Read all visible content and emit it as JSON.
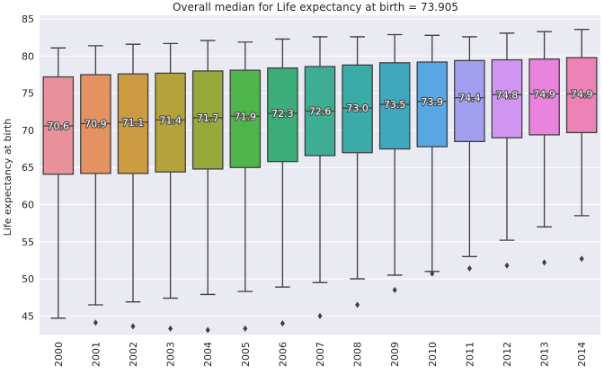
{
  "chart_data": {
    "type": "box",
    "title": "Overall median for Life expectancy at birth = 73.905",
    "xlabel": "",
    "ylabel": "Life expectancy at birth",
    "ylim": [
      42.5,
      85.5
    ],
    "yticks": [
      45,
      50,
      55,
      60,
      65,
      70,
      75,
      80,
      85
    ],
    "grid": true,
    "categories": [
      "2000",
      "2001",
      "2002",
      "2003",
      "2004",
      "2005",
      "2006",
      "2007",
      "2008",
      "2009",
      "2010",
      "2011",
      "2012",
      "2013",
      "2014"
    ],
    "median_labels": [
      "70.6",
      "70.9",
      "71.1",
      "71.4",
      "71.7",
      "71.9",
      "72.3",
      "72.6",
      "73.0",
      "73.5",
      "73.9",
      "74.4",
      "74.8",
      "74.9",
      "74.9"
    ],
    "boxes": [
      {
        "whislo": 44.7,
        "q1": 64.1,
        "med": 70.6,
        "q3": 77.2,
        "whishi": 81.1,
        "fliers": []
      },
      {
        "whislo": 46.5,
        "q1": 64.2,
        "med": 70.9,
        "q3": 77.5,
        "whishi": 81.4,
        "fliers": [
          44.1
        ]
      },
      {
        "whislo": 46.9,
        "q1": 64.2,
        "med": 71.1,
        "q3": 77.6,
        "whishi": 81.6,
        "fliers": [
          43.6
        ]
      },
      {
        "whislo": 47.4,
        "q1": 64.4,
        "med": 71.4,
        "q3": 77.7,
        "whishi": 81.7,
        "fliers": [
          43.3
        ]
      },
      {
        "whislo": 47.9,
        "q1": 64.8,
        "med": 71.7,
        "q3": 78.0,
        "whishi": 82.1,
        "fliers": [
          43.1
        ]
      },
      {
        "whislo": 48.3,
        "q1": 65.0,
        "med": 71.9,
        "q3": 78.1,
        "whishi": 81.9,
        "fliers": [
          43.3
        ]
      },
      {
        "whislo": 48.9,
        "q1": 65.8,
        "med": 72.3,
        "q3": 78.4,
        "whishi": 82.3,
        "fliers": [
          44.0
        ]
      },
      {
        "whislo": 49.5,
        "q1": 66.6,
        "med": 72.6,
        "q3": 78.6,
        "whishi": 82.6,
        "fliers": [
          45.0
        ]
      },
      {
        "whislo": 50.0,
        "q1": 67.0,
        "med": 73.0,
        "q3": 78.8,
        "whishi": 82.6,
        "fliers": [
          46.5
        ]
      },
      {
        "whislo": 50.5,
        "q1": 67.5,
        "med": 73.5,
        "q3": 79.1,
        "whishi": 82.9,
        "fliers": [
          48.5
        ]
      },
      {
        "whislo": 51.0,
        "q1": 67.8,
        "med": 73.9,
        "q3": 79.2,
        "whishi": 82.8,
        "fliers": [
          50.7
        ]
      },
      {
        "whislo": 53.0,
        "q1": 68.5,
        "med": 74.4,
        "q3": 79.4,
        "whishi": 82.6,
        "fliers": [
          51.4
        ]
      },
      {
        "whislo": 55.2,
        "q1": 69.0,
        "med": 74.8,
        "q3": 79.5,
        "whishi": 83.1,
        "fliers": [
          51.8
        ]
      },
      {
        "whislo": 57.0,
        "q1": 69.4,
        "med": 74.9,
        "q3": 79.6,
        "whishi": 83.3,
        "fliers": [
          52.2
        ]
      },
      {
        "whislo": 58.5,
        "q1": 69.7,
        "med": 74.9,
        "q3": 79.8,
        "whishi": 83.6,
        "fliers": [
          52.7
        ]
      }
    ],
    "colors": [
      "#e8919a",
      "#e49360",
      "#cb9a41",
      "#b4a23b",
      "#96aa3b",
      "#4eb54a",
      "#3dae7a",
      "#3dae93",
      "#3aaba7",
      "#3da8be",
      "#58a7e3",
      "#a39ff0",
      "#d095f0",
      "#ea83dd",
      "#ec82b8"
    ],
    "style": {
      "background": "#eaeaf2",
      "grid_color": "#ffffff",
      "box_edge": "#3f3f3f",
      "flier_color": "#3f3f3f"
    }
  }
}
